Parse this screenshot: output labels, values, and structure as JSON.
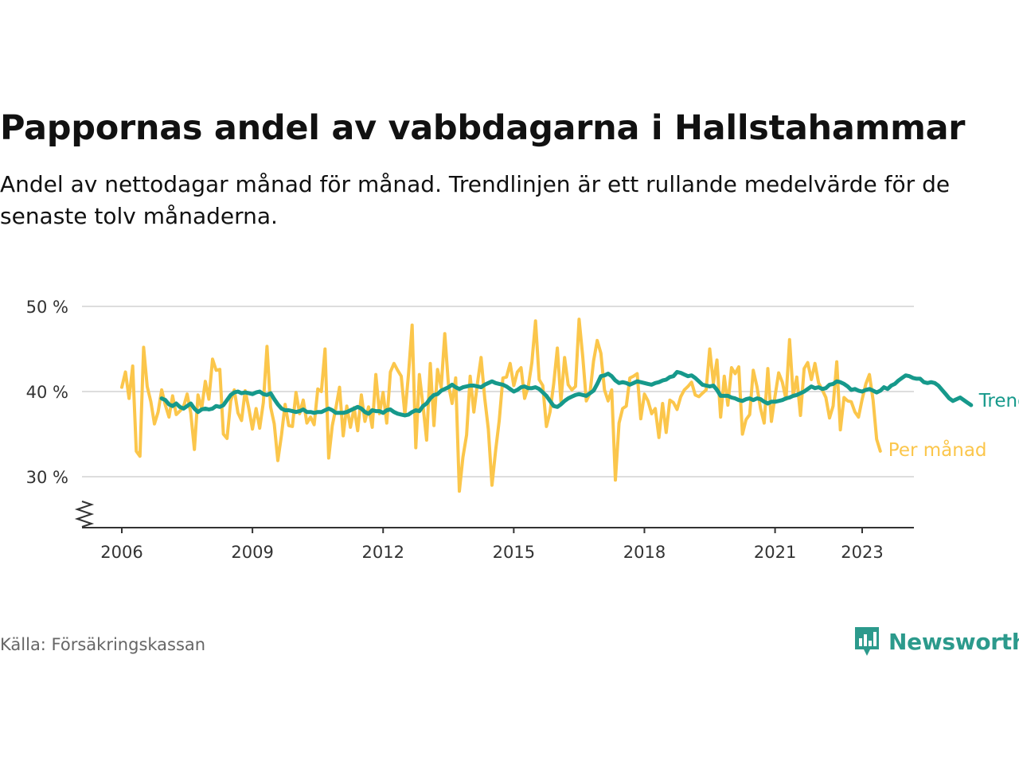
{
  "header": {
    "title": "Pappornas andel av vabbdagarna i Hallstahammar",
    "subtitle": "Andel av nettodagar månad för månad. Trendlinjen är ett rullande medelvärde för de senaste tolv månaderna."
  },
  "footer": {
    "source": "Källa: Försäkringskassan",
    "logo_text": "Newsworthy"
  },
  "colors": {
    "trend": "#16998b",
    "monthly": "#fbc64b",
    "grid": "#dddddd",
    "axis": "#333333"
  },
  "chart_data": {
    "type": "line",
    "x_axis": {
      "tick_values": [
        2006,
        2009,
        2012,
        2015,
        2018,
        2021,
        2023
      ],
      "tick_labels": [
        "2006",
        "2009",
        "2012",
        "2015",
        "2018",
        "2021",
        "2023"
      ],
      "broken_axis": true
    },
    "y_axis": {
      "tick_values": [
        30,
        40,
        50
      ],
      "tick_labels": [
        "30 %",
        "40 %",
        "50 %"
      ],
      "unit": "%",
      "grid": true
    },
    "series": [
      {
        "name": "Per månad",
        "color": "#fbc64b",
        "x_start": "2006-01",
        "step": "month",
        "values": [
          40.5,
          42.3,
          39.2,
          43.0,
          33.0,
          32.4,
          45.2,
          40.6,
          38.8,
          36.2,
          37.6,
          40.2,
          38.4,
          37.0,
          39.5,
          37.3,
          37.7,
          38.2,
          39.7,
          37.5,
          33.2,
          39.6,
          38.0,
          41.2,
          39.1,
          43.8,
          42.5,
          42.6,
          35.0,
          34.5,
          38.9,
          40.2,
          37.5,
          36.6,
          40.1,
          38.0,
          35.6,
          38.0,
          35.7,
          38.7,
          45.3,
          38.2,
          36.2,
          31.9,
          34.9,
          38.5,
          36.0,
          35.9,
          39.9,
          37.4,
          39.0,
          36.3,
          37.0,
          36.1,
          40.3,
          40.0,
          45.0,
          32.2,
          36.0,
          38.1,
          40.5,
          34.8,
          38.3,
          35.8,
          38.1,
          35.4,
          39.6,
          36.5,
          38.2,
          35.8,
          42.0,
          37.4,
          39.9,
          36.3,
          42.3,
          43.3,
          42.5,
          41.8,
          37.3,
          42.0,
          47.8,
          33.4,
          42.0,
          38.3,
          34.3,
          43.3,
          36.0,
          42.6,
          40.5,
          46.8,
          40.8,
          38.6,
          41.6,
          28.3,
          32.3,
          34.9,
          41.8,
          37.6,
          41.0,
          44.0,
          39.2,
          35.6,
          29.0,
          33.1,
          36.6,
          41.6,
          41.7,
          43.3,
          40.7,
          42.3,
          42.8,
          39.2,
          40.6,
          43.4,
          48.3,
          41.4,
          40.7,
          35.9,
          37.6,
          40.9,
          45.1,
          38.8,
          44.0,
          40.8,
          40.2,
          40.6,
          48.5,
          44.1,
          38.9,
          39.8,
          43.6,
          46.0,
          44.5,
          40.2,
          38.9,
          40.2,
          29.6,
          36.3,
          38.0,
          38.3,
          41.6,
          41.8,
          42.1,
          36.8,
          39.7,
          38.9,
          37.4,
          38.0,
          34.6,
          38.6,
          35.2,
          39.0,
          38.7,
          37.9,
          39.4,
          40.2,
          40.6,
          41.1,
          39.6,
          39.4,
          39.8,
          40.2,
          45.0,
          41.0,
          43.7,
          37.0,
          41.8,
          38.4,
          42.8,
          42.1,
          42.9,
          35.0,
          36.7,
          37.3,
          42.5,
          40.6,
          38.0,
          36.3,
          42.7,
          36.5,
          39.5,
          42.2,
          41.1,
          39.1,
          46.1,
          39.5,
          41.7,
          37.2,
          42.7,
          43.4,
          41.4,
          43.3,
          41.0,
          40.2,
          39.3,
          36.9,
          38.3,
          43.5,
          35.5,
          39.3,
          38.9,
          38.8,
          37.6,
          37.0,
          39.1,
          40.9,
          42.0,
          39.0,
          34.4,
          33.0
        ]
      },
      {
        "name": "Trend",
        "color": "#16998b",
        "x_start": "2006-12",
        "step": "month",
        "values": [
          39.2,
          39.0,
          38.5,
          38.3,
          38.6,
          38.2,
          38.0,
          38.3,
          38.6,
          38.0,
          37.6,
          37.9,
          38.0,
          37.9,
          38.0,
          38.3,
          38.2,
          38.4,
          39.0,
          39.6,
          39.9,
          40.0,
          39.8,
          39.9,
          39.8,
          39.7,
          39.9,
          40.0,
          39.7,
          39.6,
          39.8,
          39.1,
          38.5,
          38.0,
          37.8,
          37.8,
          37.7,
          37.6,
          37.7,
          37.9,
          37.6,
          37.6,
          37.5,
          37.6,
          37.6,
          37.8,
          38.0,
          37.8,
          37.5,
          37.5,
          37.5,
          37.6,
          37.8,
          38.0,
          38.2,
          38.0,
          37.6,
          37.4,
          37.8,
          37.7,
          37.7,
          37.5,
          37.8,
          37.9,
          37.6,
          37.4,
          37.3,
          37.2,
          37.3,
          37.6,
          37.8,
          37.7,
          38.3,
          38.6,
          39.2,
          39.6,
          39.7,
          40.1,
          40.3,
          40.5,
          40.8,
          40.5,
          40.3,
          40.5,
          40.6,
          40.7,
          40.7,
          40.6,
          40.5,
          40.8,
          41.0,
          41.2,
          41.0,
          40.9,
          40.8,
          40.6,
          40.3,
          40.0,
          40.2,
          40.5,
          40.6,
          40.4,
          40.4,
          40.5,
          40.3,
          39.9,
          39.5,
          38.9,
          38.3,
          38.2,
          38.5,
          38.9,
          39.2,
          39.4,
          39.6,
          39.7,
          39.6,
          39.5,
          39.8,
          40.1,
          40.9,
          41.8,
          41.9,
          42.1,
          41.8,
          41.3,
          41.0,
          41.1,
          41.0,
          40.8,
          41.0,
          41.2,
          41.1,
          41.0,
          40.9,
          40.8,
          41.0,
          41.1,
          41.3,
          41.4,
          41.7,
          41.8,
          42.3,
          42.2,
          42.0,
          41.8,
          41.9,
          41.6,
          41.2,
          40.8,
          40.7,
          40.6,
          40.7,
          40.2,
          39.5,
          39.5,
          39.5,
          39.3,
          39.2,
          39.0,
          38.9,
          39.1,
          39.2,
          39.0,
          39.2,
          39.1,
          38.8,
          38.6,
          38.8,
          38.8,
          38.9,
          39.0,
          39.2,
          39.3,
          39.5,
          39.6,
          39.8,
          40.0,
          40.3,
          40.6,
          40.4,
          40.5,
          40.3,
          40.4,
          40.8,
          40.9,
          41.2,
          41.1,
          40.9,
          40.6,
          40.2,
          40.3,
          40.1,
          40.0,
          40.2,
          40.3,
          40.1,
          39.9,
          40.1,
          40.5,
          40.3,
          40.7,
          40.9,
          41.3,
          41.6,
          41.9,
          41.8,
          41.6,
          41.5,
          41.5,
          41.1,
          41.0,
          41.1,
          41.0,
          40.7,
          40.2,
          39.7,
          39.2,
          38.9,
          39.1,
          39.3,
          39.0,
          38.7,
          38.4
        ]
      }
    ],
    "xlabel": "",
    "ylabel": ""
  }
}
